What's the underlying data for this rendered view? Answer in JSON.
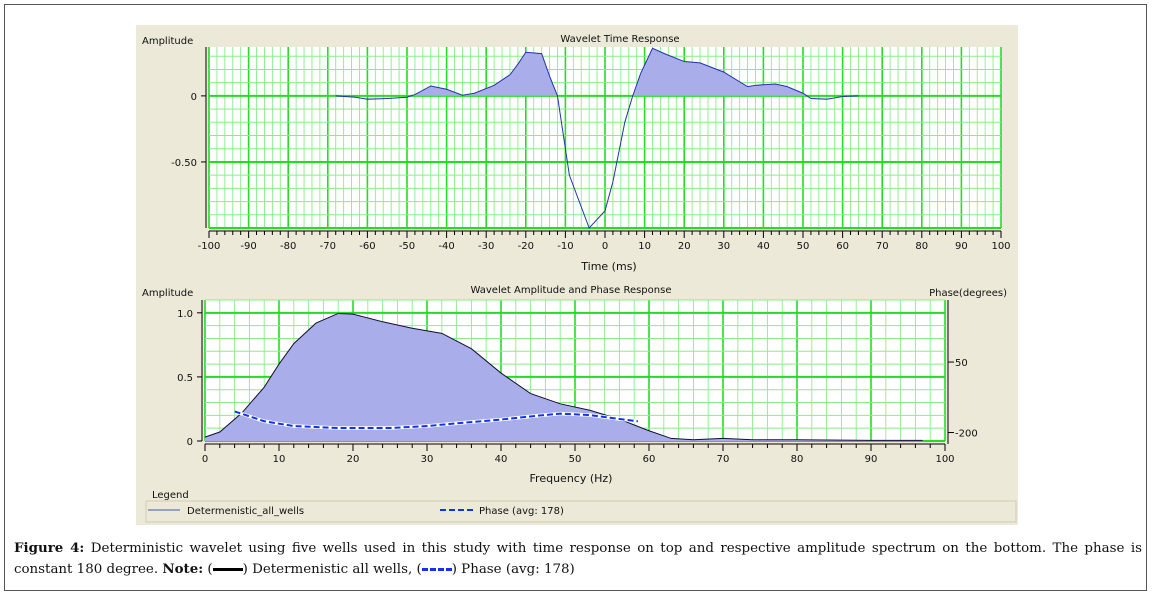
{
  "chart_data": [
    {
      "type": "area",
      "title": "Wavelet Time Response",
      "ylabel": "Amplitude",
      "xlabel": "Time (ms)",
      "xlim": [
        -100,
        100
      ],
      "ylim": [
        -1.0,
        0.37
      ],
      "xticks": [
        -100,
        -90,
        -80,
        -70,
        -60,
        -50,
        -40,
        -30,
        -20,
        -10,
        0,
        10,
        20,
        30,
        40,
        50,
        60,
        70,
        80,
        90,
        100
      ],
      "yticks": [
        {
          "v": 0,
          "label": "0"
        },
        {
          "v": -0.5,
          "label": "-0.50"
        }
      ],
      "grid": true,
      "colors": {
        "fill": "#a9aeea",
        "line": "#2233aa",
        "grid": "#22dd22",
        "grid_minor": "#88ee88"
      },
      "series": [
        {
          "x": [
            -68,
            -63,
            -60,
            -55,
            -50,
            -48,
            -44,
            -40,
            -36,
            -33,
            -28,
            -24,
            -22,
            -20,
            -16,
            -14,
            -12,
            -9,
            -4,
            0,
            2,
            5,
            7,
            9,
            12,
            15,
            20,
            24,
            30,
            36,
            38,
            43,
            46,
            50,
            52,
            56,
            60,
            64
          ],
          "y": [
            0,
            -0.01,
            -0.025,
            -0.02,
            -0.01,
            0.01,
            0.075,
            0.05,
            0.005,
            0.02,
            0.08,
            0.16,
            0.24,
            0.33,
            0.32,
            0.15,
            0.0,
            -0.6,
            -1.0,
            -0.87,
            -0.65,
            -0.2,
            0.0,
            0.17,
            0.36,
            0.32,
            0.26,
            0.25,
            0.18,
            0.07,
            0.08,
            0.09,
            0.07,
            0.02,
            -0.02,
            -0.025,
            -0.005,
            0
          ]
        }
      ]
    },
    {
      "type": "area",
      "title": "Wavelet Amplitude and Phase Response",
      "ylabel": "Amplitude",
      "y2label": "Phase(degrees)",
      "xlabel": "Frequency (Hz)",
      "xlim": [
        0,
        100
      ],
      "ylim": [
        0,
        1.1
      ],
      "y2lim": [
        -230,
        270
      ],
      "xticks": [
        0,
        10,
        20,
        30,
        40,
        50,
        60,
        70,
        80,
        90,
        100
      ],
      "yticks": [
        {
          "v": 0,
          "label": "0"
        },
        {
          "v": 0.5,
          "label": "0.5"
        },
        {
          "v": 1.0,
          "label": "1.0"
        }
      ],
      "y2ticks": [
        {
          "v": 50,
          "label": "50"
        },
        {
          "v": -200,
          "label": "-200"
        }
      ],
      "grid": true,
      "colors": {
        "fill": "#a9aeea",
        "line": "#111133",
        "phase": "#1133ee",
        "grid": "#22dd22",
        "grid_minor": "#88ee88"
      },
      "series": [
        {
          "name": "Determenistic_all_wells",
          "axis": "left",
          "x": [
            0,
            2,
            5,
            8,
            10,
            12,
            15,
            18,
            20,
            24,
            28,
            32,
            36,
            40,
            44,
            48,
            52,
            56,
            60,
            63,
            66,
            70,
            74,
            80,
            90,
            97
          ],
          "y": [
            0.03,
            0.07,
            0.22,
            0.42,
            0.6,
            0.76,
            0.92,
            0.995,
            0.99,
            0.93,
            0.88,
            0.84,
            0.72,
            0.53,
            0.37,
            0.29,
            0.24,
            0.17,
            0.08,
            0.02,
            0.01,
            0.02,
            0.01,
            0.01,
            0.005,
            0.005
          ]
        },
        {
          "name": "Phase (avg: 178)",
          "axis": "right",
          "x": [
            4,
            8,
            12,
            18,
            25,
            30,
            35,
            40,
            45,
            48,
            52,
            56,
            58.5
          ],
          "y": [
            -125,
            -160,
            -177,
            -184,
            -184,
            -177,
            -165,
            -154,
            -140,
            -133,
            -138,
            -152,
            -160
          ]
        }
      ],
      "legend": {
        "title": "Legend",
        "placement": "bottom"
      }
    }
  ],
  "caption": {
    "label": "Figure 4:",
    "text": " Deterministic wavelet using five wells used in this study with time response on top and respective amplitude spectrum on the bottom. The phase is constant 180 degree. ",
    "note_label": "Note:",
    "note_1_open": " (",
    "note_1_text": ") Determenistic all wells, (",
    "note_2_text": ") Phase (avg: 178)"
  }
}
